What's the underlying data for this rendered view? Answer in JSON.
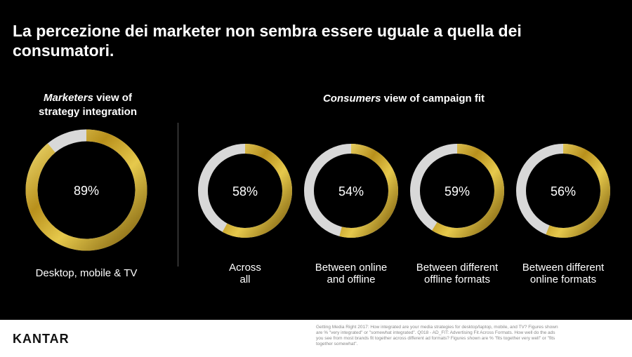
{
  "title": "La percezione dei marketer non sembra essere uguale a quella dei consumatori.",
  "marketers_heading": {
    "em": "Marketers",
    "rest": " view of strategy integration"
  },
  "consumers_heading": {
    "em": "Consumers",
    "rest": " view of campaign fit"
  },
  "colors": {
    "gold": "#c9a227",
    "gold_dark": "#8a6a10",
    "gold_light": "#f1dd73",
    "track": "#d8d8d8",
    "text": "#ffffff"
  },
  "chart_data": [
    {
      "type": "pie",
      "variant": "donut",
      "group": "Marketers view of strategy integration",
      "label": "Desktop, mobile & TV",
      "value": 89,
      "value_label": "89%"
    },
    {
      "type": "pie",
      "variant": "donut",
      "group": "Consumers view of campaign fit",
      "label": "Across all",
      "value": 58,
      "value_label": "58%"
    },
    {
      "type": "pie",
      "variant": "donut",
      "group": "Consumers view of campaign fit",
      "label": "Between online and offline",
      "value": 54,
      "value_label": "54%"
    },
    {
      "type": "pie",
      "variant": "donut",
      "group": "Consumers view of campaign fit",
      "label": "Between different offline formats",
      "value": 59,
      "value_label": "59%"
    },
    {
      "type": "pie",
      "variant": "donut",
      "group": "Consumers view of campaign fit",
      "label": "Between different online formats",
      "value": 56,
      "value_label": "56%"
    }
  ],
  "ring_labels": [
    [
      "Desktop, mobile & TV"
    ],
    [
      "Across",
      "all"
    ],
    [
      "Between online",
      "and offline"
    ],
    [
      "Between different",
      "offline formats"
    ],
    [
      "Between different",
      "online formats"
    ]
  ],
  "footer": {
    "logo": "KANTAR",
    "source": "Getting Media Right 2017: How integrated are your media strategies for desktop/laptop, mobile, and TV? Figures shown are % \"very integrated\" or \"somewhat integrated\". Q018 - AD_FIT: Advertising Fit Across Formats. How well do the ads you see from most brands fit together across different ad formats? Figures shown are % \"fits together very well\" or \"fits together somewhat\"."
  }
}
